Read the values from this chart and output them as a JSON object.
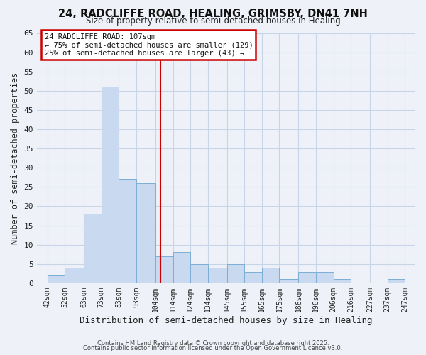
{
  "title_line1": "24, RADCLIFFE ROAD, HEALING, GRIMSBY, DN41 7NH",
  "title_line2": "Size of property relative to semi-detached houses in Healing",
  "xlabel": "Distribution of semi-detached houses by size in Healing",
  "ylabel": "Number of semi-detached properties",
  "bar_left_edges": [
    42,
    52,
    63,
    73,
    83,
    93,
    104,
    114,
    124,
    134,
    145,
    155,
    165,
    175,
    186,
    196,
    206,
    216,
    227,
    237
  ],
  "bar_widths": [
    10,
    11,
    10,
    10,
    10,
    11,
    10,
    10,
    10,
    11,
    10,
    10,
    10,
    11,
    10,
    10,
    10,
    11,
    10,
    10
  ],
  "bar_heights": [
    2,
    4,
    18,
    51,
    27,
    26,
    7,
    8,
    5,
    4,
    5,
    3,
    4,
    1,
    3,
    3,
    1,
    0,
    0,
    1
  ],
  "bar_color": "#c8d9f0",
  "bar_edgecolor": "#7bafd4",
  "tick_labels": [
    "42sqm",
    "52sqm",
    "63sqm",
    "73sqm",
    "83sqm",
    "93sqm",
    "104sqm",
    "114sqm",
    "124sqm",
    "134sqm",
    "145sqm",
    "155sqm",
    "165sqm",
    "175sqm",
    "186sqm",
    "196sqm",
    "206sqm",
    "216sqm",
    "227sqm",
    "237sqm",
    "247sqm"
  ],
  "tick_positions": [
    42,
    52,
    63,
    73,
    83,
    93,
    104,
    114,
    124,
    134,
    145,
    155,
    165,
    175,
    186,
    196,
    206,
    216,
    227,
    237,
    247
  ],
  "ylim": [
    0,
    65
  ],
  "xlim": [
    36,
    253
  ],
  "vline_x": 107,
  "vline_color": "#cc0000",
  "annotation_title": "24 RADCLIFFE ROAD: 107sqm",
  "annotation_line2": "← 75% of semi-detached houses are smaller (129)",
  "annotation_line3": "25% of semi-detached houses are larger (43) →",
  "grid_color": "#c8d4e8",
  "bg_color": "#eef2f8",
  "footer_line1": "Contains HM Land Registry data © Crown copyright and database right 2025.",
  "footer_line2": "Contains public sector information licensed under the Open Government Licence v3.0."
}
